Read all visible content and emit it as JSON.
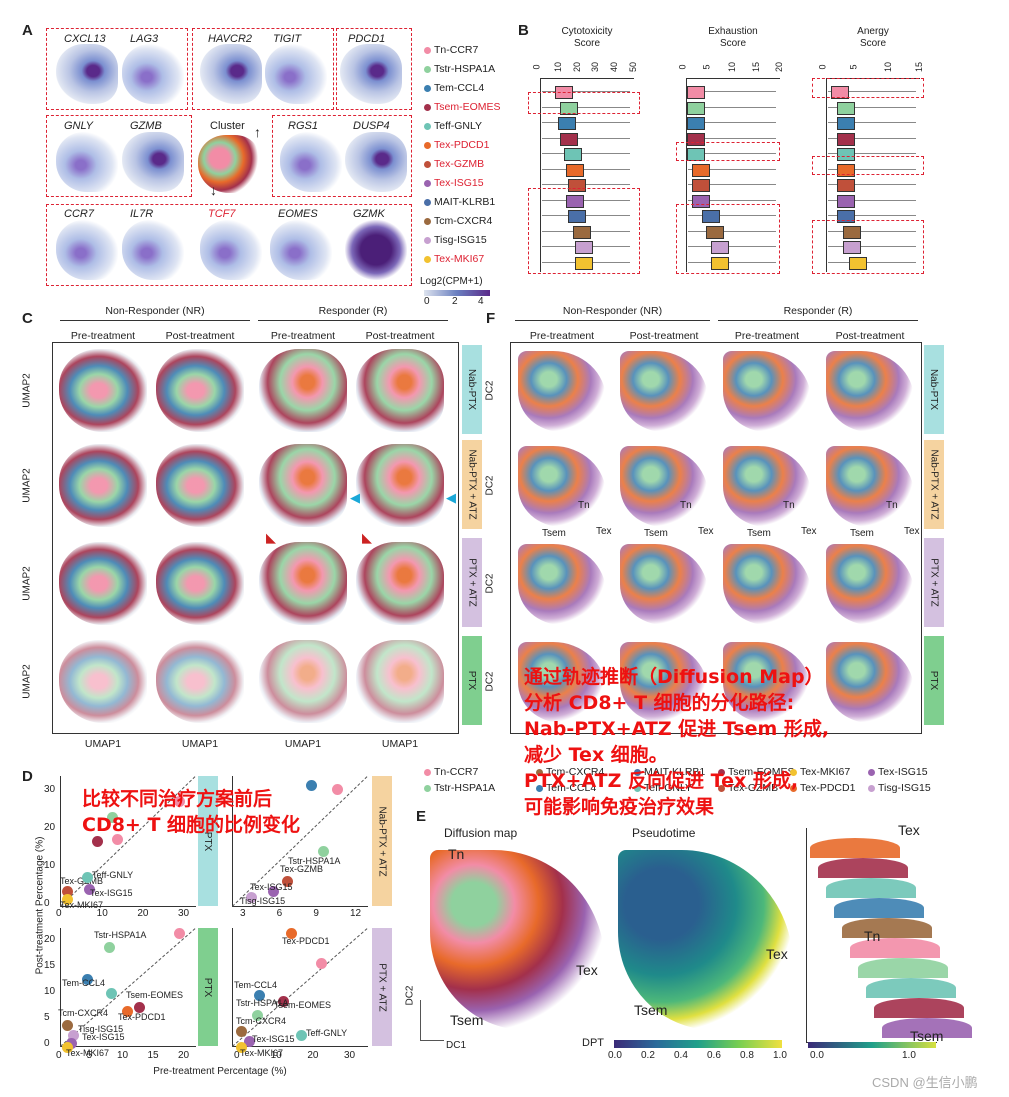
{
  "panels": {
    "A": "A",
    "B": "B",
    "C": "C",
    "D": "D",
    "E": "E",
    "F": "F"
  },
  "panelA": {
    "genes_row1": [
      "CXCL13",
      "LAG3",
      "HAVCR2",
      "TIGIT",
      "PDCD1"
    ],
    "genes_row2": [
      "GNLY",
      "GZMB",
      "RGS1",
      "DUSP4"
    ],
    "cluster_label": "Cluster",
    "genes_row3": [
      "CCR7",
      "IL7R",
      "TCF7",
      "EOMES",
      "GZMK"
    ],
    "legend_title": "Log2(CPM+1)",
    "legend_ticks": [
      "0",
      "2",
      "4"
    ]
  },
  "clusters": [
    {
      "name": "Tn-CCR7",
      "color": "#f28ca6",
      "red": false
    },
    {
      "name": "Tstr-HSPA1A",
      "color": "#8fd19e",
      "red": false
    },
    {
      "name": "Tem-CCL4",
      "color": "#3b7fb0",
      "red": false
    },
    {
      "name": "Tsem-EOMES",
      "color": "#a3304b",
      "red": true
    },
    {
      "name": "Teff-GNLY",
      "color": "#6ec4b5",
      "red": false
    },
    {
      "name": "Tex-PDCD1",
      "color": "#e86a2a",
      "red": true
    },
    {
      "name": "Tex-GZMB",
      "color": "#c0503a",
      "red": true
    },
    {
      "name": "Tex-ISG15",
      "color": "#9a63b0",
      "red": true
    },
    {
      "name": "MAIT-KLRB1",
      "color": "#4a6fa8",
      "red": false
    },
    {
      "name": "Tcm-CXCR4",
      "color": "#9b6a3f",
      "red": false
    },
    {
      "name": "Tisg-ISG15",
      "color": "#c7a0d0",
      "red": false
    },
    {
      "name": "Tex-MKI67",
      "color": "#f2c230",
      "red": true
    }
  ],
  "panelB": {
    "titles": [
      "Cytotoxicity\nScore",
      "Exhaustion\nScore",
      "Anergy\nScore"
    ],
    "title_lines": [
      [
        "Cytotoxicity",
        "Score"
      ],
      [
        "Exhaustion",
        "Score"
      ],
      [
        "Anergy",
        "Score"
      ]
    ],
    "ticks": [
      [
        "0",
        "10",
        "20",
        "30",
        "40",
        "50"
      ],
      [
        "0",
        "5",
        "10",
        "15",
        "20"
      ],
      [
        "0",
        "5",
        "10",
        "15"
      ]
    ]
  },
  "panelC": {
    "groups": [
      "Non-Responder (NR)",
      "Responder (R)"
    ],
    "timepoints": [
      "Pre-treatment",
      "Post-treatment",
      "Pre-treatment",
      "Post-treatment"
    ],
    "rows": [
      "Nab-PTX",
      "Nab-PTX + ATZ",
      "PTX + ATZ",
      "PTX"
    ],
    "ylabel": "UMAP2",
    "xlabel": "UMAP1"
  },
  "panelF": {
    "groups": [
      "Non-Responder (NR)",
      "Responder (R)"
    ],
    "timepoints": [
      "Pre-treatment",
      "Post-treatment",
      "Pre-treatment",
      "Post-treatment"
    ],
    "rows": [
      "Nab-PTX",
      "Nab-PTX + ATZ",
      "PTX + ATZ",
      "PTX"
    ],
    "ylabel": "DC2",
    "path_labels": [
      "Tn",
      "Tsem",
      "Tex"
    ]
  },
  "panelD": {
    "ylabel": "Post-treatment Percentage (%)",
    "xlabel": "Pre-treatment Percentage (%)",
    "tl_xticks": [
      "0",
      "10",
      "20",
      "30"
    ],
    "tl_yticks": [
      "0",
      "10",
      "20",
      "30"
    ],
    "tr_xticks": [
      "3",
      "6",
      "9",
      "12"
    ],
    "bl_xticks": [
      "0",
      "5",
      "10",
      "15",
      "20"
    ],
    "bl_yticks": [
      "0",
      "5",
      "10",
      "15",
      "20"
    ],
    "br_xticks": [
      "0",
      "10",
      "20",
      "30"
    ],
    "tl_labels": [
      "Tex-GZMB",
      "Teff-GNLY",
      "Tex-ISG15",
      "Tex-MKI67"
    ],
    "tr_labels": [
      "Tstr-HSPA1A",
      "Tex-GZMB",
      "Tex-ISG15",
      "Tisg-ISG15"
    ],
    "bl_labels": [
      "Tstr-HSPA1A",
      "Tem-CCL4",
      "Tsem-EOMES",
      "Tex-PDCD1",
      "Tcm-CXCR4",
      "Tisg-ISG15",
      "Tex-ISG15",
      "Tex-MKI67"
    ],
    "br_labels": [
      "Tex-PDCD1",
      "Tem-CCL4",
      "Tsem-EOMES",
      "Tstr-HSPA1A",
      "Tcm-CXCR4",
      "Tex-ISG15",
      "Teff-GNLY",
      "Tex-MKI67"
    ],
    "row_tags": [
      "PTX",
      "Nab-PTX + ATZ",
      "PTX",
      "PTX + ATZ"
    ],
    "tl_tag": "PTX"
  },
  "panelE": {
    "titles": [
      "Diffusion map",
      "Pseudotime"
    ],
    "labels_dm": [
      "Tn",
      "Tex",
      "Tsem"
    ],
    "axis_dc2": "DC2",
    "axis_dc1": "DC1",
    "labels_pt": [
      "Tex",
      "Tsem"
    ],
    "dpt_label": "DPT",
    "dpt_ticks": [
      "0.0",
      "0.2",
      "0.4",
      "0.6",
      "0.8",
      "1.0"
    ],
    "ridge_ticks": [
      "0.0",
      "1.0"
    ],
    "ridge_labels": [
      "Tex",
      "Tn",
      "Tsem"
    ]
  },
  "legendE": [
    "Tn-CCR7",
    "Tstr-HSPA1A",
    "Tcm-CXCR4",
    "Tem-CCL4",
    "MAIT-KLRB1",
    "Teff-GNLY",
    "Tsem-EOMES",
    "Tex-GZMB",
    "Tex-MKI67",
    "Tex-PDCD1",
    "Tex-ISG15",
    "Tisg-ISG15"
  ],
  "overlays": {
    "d_lines": [
      "比较不同治疗方案前后",
      "CD8+ T 细胞的比例变化"
    ],
    "f_lines": [
      "通过轨迹推断（Diffusion Map）",
      "分析 CD8+ T 细胞的分化路径:",
      "Nab-PTX+ATZ 促进 Tsem 形成,",
      "减少 Tex 细胞。",
      "PTX+ATZ 反向促进 Tex 形成,",
      "可能影响免疫治疗效果"
    ]
  },
  "watermark": "CSDN @生信小鹏"
}
